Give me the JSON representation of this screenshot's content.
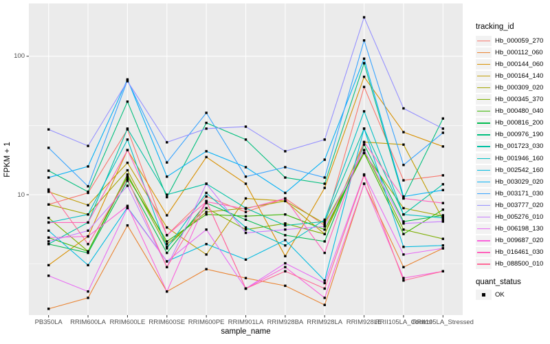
{
  "figure": {
    "panel_background": "#ebebeb",
    "grid_color": "#ffffff",
    "point_color": "#000000",
    "axis_text_color": "#4d4d4d",
    "tick_color": "#333333",
    "legend_key_fill": "#f2f2f2"
  },
  "chart_data": {
    "type": "line",
    "title": "",
    "xlabel": "sample_name",
    "ylabel": "FPKM + 1",
    "y_scale": "log10",
    "y_tick_labels": [
      "100",
      "10"
    ],
    "y_tick_values": [
      100,
      10
    ],
    "y_minor_gridlines": [
      31.6,
      3.16
    ],
    "ylim": [
      1.35,
      240
    ],
    "grid": true,
    "legend_position": "right",
    "point_shape": "square",
    "categories": [
      "PB350LA",
      "RRIM600LA",
      "RRIM600LE",
      "RRIM600SE",
      "RRIM600PE",
      "RRIM901LA",
      "RRIM928BA",
      "RRIM928LA",
      "RRIM928LE",
      "RRII105LA_Control",
      "RRII105LA_Stressed"
    ],
    "legend": {
      "color_title": "tracking_id",
      "shape_title": "quant_status",
      "shape_label": "OK"
    },
    "series": [
      {
        "name": "Hb_000059_270",
        "color": "#F8766D",
        "values": [
          8.5,
          10.3,
          29.6,
          5.1,
          9.7,
          7.5,
          9.4,
          6.0,
          60,
          12.7,
          13.8
        ]
      },
      {
        "name": "Hb_000112_060",
        "color": "#EA8331",
        "values": [
          1.5,
          1.8,
          6.0,
          2.0,
          2.9,
          2.5,
          2.2,
          1.6,
          12.0,
          3.0,
          4.1
        ]
      },
      {
        "name": "Hb_000144_060",
        "color": "#D89000",
        "values": [
          3.1,
          5.0,
          21.0,
          7.1,
          18.7,
          12.0,
          3.6,
          11.2,
          71,
          28.3,
          22.3
        ]
      },
      {
        "name": "Hb_000164_140",
        "color": "#C09B00",
        "values": [
          10.5,
          8.4,
          17.0,
          5.8,
          3.7,
          9.4,
          9.0,
          5.2,
          24,
          23.0,
          6.6
        ]
      },
      {
        "name": "Hb_000309_020",
        "color": "#A3A500",
        "values": [
          8.5,
          7.2,
          15.0,
          4.4,
          7.5,
          8.0,
          9.0,
          6.2,
          20,
          8.0,
          7.0
        ]
      },
      {
        "name": "Hb_000345_370",
        "color": "#7CAE00",
        "values": [
          6.8,
          3.9,
          14.0,
          4.2,
          8.0,
          5.6,
          6.2,
          5.2,
          21,
          5.6,
          4.8
        ]
      },
      {
        "name": "Hb_000480_040",
        "color": "#39B600",
        "values": [
          4.9,
          3.9,
          13.5,
          4.6,
          7.2,
          7.0,
          7.2,
          5.6,
          20,
          5.2,
          7.8
        ]
      },
      {
        "name": "Hb_000816_200",
        "color": "#00BB4E",
        "values": [
          4.4,
          3.8,
          12.6,
          3.8,
          8.7,
          6.6,
          5.1,
          4.6,
          23,
          6.4,
          7.1
        ]
      },
      {
        "name": "Hb_000976_190",
        "color": "#00BF7D",
        "values": [
          14.9,
          10.5,
          47.0,
          9.6,
          33.0,
          25.0,
          13.3,
          12.0,
          89,
          9.4,
          35.5
        ]
      },
      {
        "name": "Hb_001723_030",
        "color": "#00C1A3",
        "values": [
          4.4,
          6.3,
          30.0,
          10.0,
          12.0,
          8.0,
          6.0,
          6.4,
          30,
          7.2,
          11.9
        ]
      },
      {
        "name": "Hb_001946_160",
        "color": "#00BFC4",
        "values": [
          6.3,
          7.2,
          25.0,
          4.1,
          10.3,
          5.8,
          4.3,
          6.6,
          40,
          7.2,
          6.8
        ]
      },
      {
        "name": "Hb_002542_160",
        "color": "#00BAE0",
        "values": [
          5.5,
          3.1,
          8.1,
          3.3,
          4.4,
          3.4,
          4.7,
          2.4,
          30,
          4.2,
          4.3
        ]
      },
      {
        "name": "Hb_003029_020",
        "color": "#00B0F6",
        "values": [
          13.3,
          16.0,
          68.0,
          13.5,
          20.6,
          15.8,
          10.3,
          17.9,
          96,
          9.7,
          10.8
        ]
      },
      {
        "name": "Hb_003171_030",
        "color": "#35A2FF",
        "values": [
          21.8,
          11.5,
          67.0,
          17.1,
          39.0,
          13.5,
          15.8,
          13.3,
          130,
          16.4,
          28.0
        ]
      },
      {
        "name": "Hb_003777_020",
        "color": "#9590FF",
        "values": [
          29.6,
          22.5,
          66.0,
          23.9,
          30.0,
          31.0,
          20.6,
          25.0,
          191,
          42.0,
          30.0
        ]
      },
      {
        "name": "Hb_005276_010",
        "color": "#C77CFF",
        "values": [
          4.6,
          5.5,
          11.6,
          3.0,
          12.0,
          5.3,
          5.6,
          5.9,
          21,
          6.2,
          6.4
        ]
      },
      {
        "name": "Hb_006198_130",
        "color": "#E76BF3",
        "values": [
          2.6,
          2.0,
          8.0,
          3.3,
          5.6,
          2.1,
          3.2,
          2.3,
          14,
          3.7,
          4.1
        ]
      },
      {
        "name": "Hb_009687_020",
        "color": "#FA62DB",
        "values": [
          4.9,
          5.0,
          8.3,
          2.0,
          9.0,
          2.1,
          3.0,
          1.8,
          12,
          2.5,
          2.8
        ]
      },
      {
        "name": "Hb_016461_030",
        "color": "#FF62BC",
        "values": [
          6.3,
          6.3,
          21.0,
          5.1,
          8.9,
          7.9,
          9.4,
          3.8,
          24,
          9.4,
          8.7
        ]
      },
      {
        "name": "Hb_088500_010",
        "color": "#FF6A98",
        "values": [
          10.9,
          4.4,
          13.0,
          3.0,
          9.0,
          2.1,
          2.8,
          2.1,
          13.8,
          2.4,
          2.8
        ]
      }
    ]
  }
}
